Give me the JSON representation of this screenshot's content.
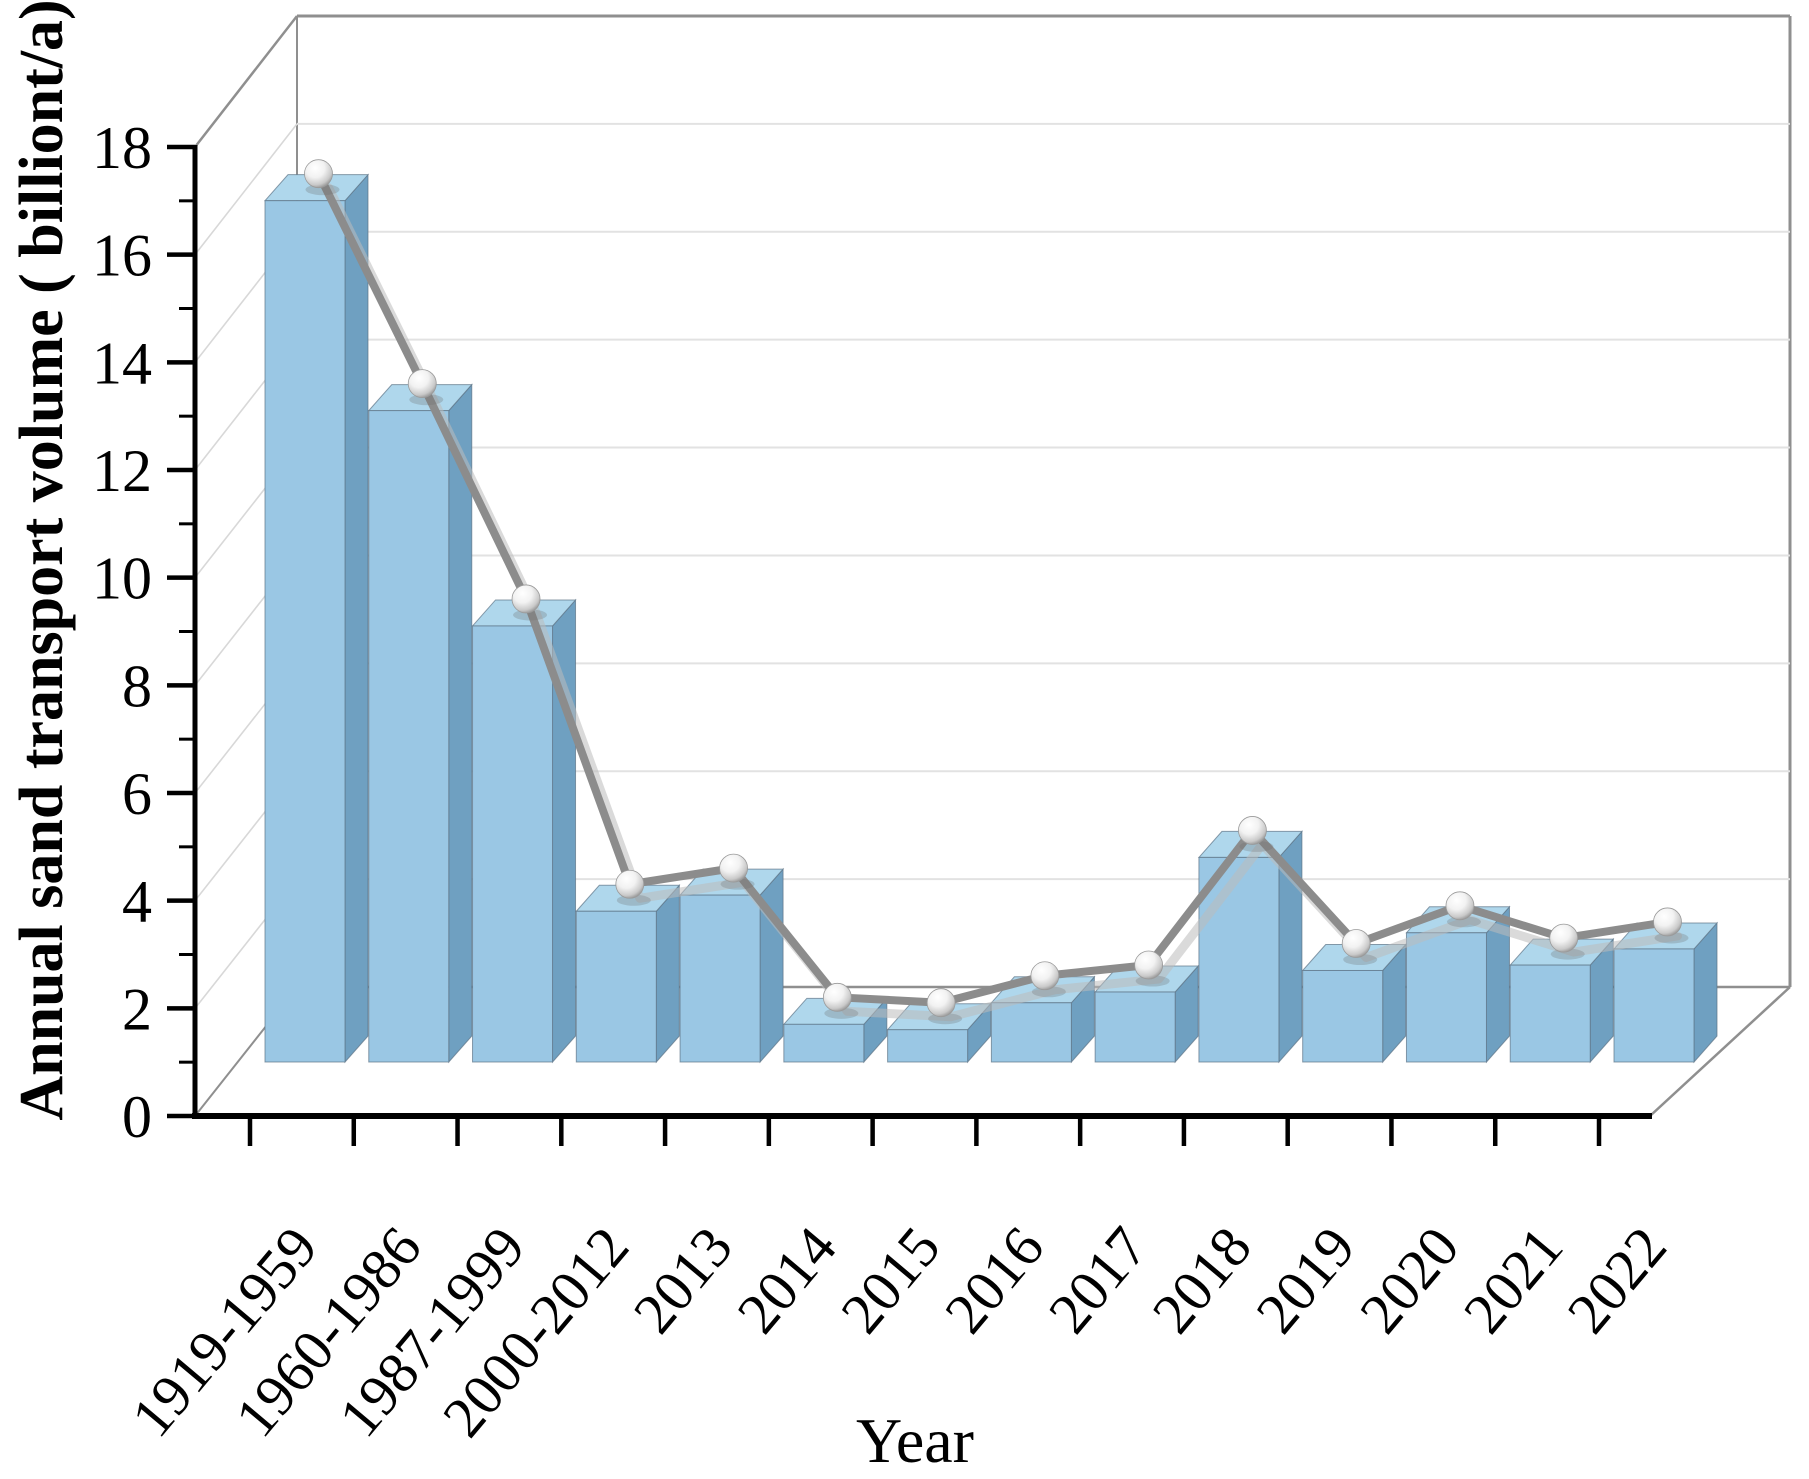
{
  "figure": {
    "xlabel": "Year",
    "ylabel": "Annual sand transport volume ( billiont/a)"
  },
  "chart_data": {
    "type": "bar",
    "subtype": "3d-perspective-bar-with-line-overlay",
    "categories": [
      "1919-1959",
      "1960-1986",
      "1987-1999",
      "2000-2012",
      "2013",
      "2014",
      "2015",
      "2016",
      "2017",
      "2018",
      "2019",
      "2020",
      "2021",
      "2022"
    ],
    "series": [
      {
        "name": "annual-sand-transport-bars",
        "type": "bar",
        "values": [
          16.0,
          12.1,
          8.1,
          2.8,
          3.1,
          0.7,
          0.6,
          1.1,
          1.3,
          3.8,
          1.7,
          2.4,
          1.8,
          2.1
        ]
      },
      {
        "name": "annual-sand-transport-trend-line",
        "type": "line",
        "marker": "sphere",
        "values": [
          16.0,
          12.1,
          8.1,
          2.8,
          3.1,
          0.7,
          0.6,
          1.1,
          1.3,
          3.8,
          1.7,
          2.4,
          1.8,
          2.1
        ]
      }
    ],
    "title": "",
    "xlabel": "Year",
    "ylabel": "Annual sand transport volume ( billiont/a)",
    "ylim": [
      0,
      18
    ],
    "yticks": [
      0,
      2,
      4,
      6,
      8,
      10,
      12,
      14,
      16,
      18
    ],
    "minor_ytick_step": 1,
    "grid": true,
    "legend_position": "none",
    "colors": {
      "bar_front": "#9AC7E4",
      "bar_top": "#AFD7EC",
      "bar_side": "#6FA0C1",
      "bar_edge": "#5D7486",
      "line": "#8C8C8C",
      "line_shadow": "#BBBBBB",
      "marker_fill": "#FFFFFF",
      "marker_shade": "#8F8F8F",
      "axis": "#000000",
      "frame": "#8F8F8F",
      "gridline": "#E2E2E2",
      "wall_tick_line": "#D8D8D8",
      "background": "#FFFFFF"
    }
  }
}
